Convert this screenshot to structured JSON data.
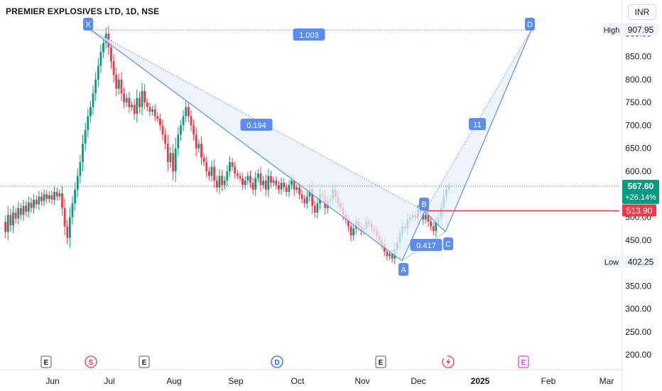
{
  "header": {
    "title": "PREMIER EXPLOSIVES LTD, 1D, NSE",
    "currency": "INR"
  },
  "colors": {
    "up": "#089981",
    "down": "#f23645",
    "pattern": "#5b8def",
    "pattern_fill": "#e8f0fd",
    "level_line": "#f23645",
    "text": "#131722"
  },
  "chart_data": {
    "type": "candlestick",
    "y_range": [
      180,
      930
    ],
    "y_ticks": [
      "200.00",
      "250.00",
      "300.00",
      "350.00",
      "400.00",
      "450.00",
      "500.00",
      "550.00",
      "600.00",
      "650.00",
      "700.00",
      "750.00",
      "800.00",
      "850.00",
      "900.00"
    ],
    "y_tick_values": [
      200,
      250,
      300,
      350,
      400,
      450,
      500,
      550,
      600,
      650,
      700,
      750,
      800,
      850,
      900
    ],
    "x_ticks": [
      "Jun",
      "Jul",
      "Aug",
      "Sep",
      "Oct",
      "Nov",
      "Dec",
      "2025",
      "Feb",
      "Mar"
    ],
    "high": {
      "label": "High",
      "value": "907.95"
    },
    "low": {
      "label": "Low",
      "value": "402.25"
    },
    "last_price": {
      "value": "567.60",
      "change": "+26.14%"
    },
    "level_line": {
      "value": "513.90"
    },
    "harmonic_pattern": {
      "points": [
        {
          "label": "X",
          "date": "Jun 2024",
          "price": 907.95
        },
        {
          "label": "A",
          "date": "Nov 2024",
          "price": 405
        },
        {
          "label": "B",
          "date": "Dec 2024",
          "price": 513
        },
        {
          "label": "C",
          "date": "Dec 2024",
          "price": 468
        },
        {
          "label": "D",
          "date": "Feb 2025",
          "price": 907.95
        }
      ],
      "ratios": [
        "0.194",
        "0.417",
        "11",
        "1.003"
      ]
    },
    "event_markers": [
      "E",
      "S",
      "E",
      "D",
      "E",
      "E"
    ],
    "series": [
      {
        "values": [
          490,
          468,
          505,
          482,
          510,
          497,
          520,
          505,
          525,
          512,
          532,
          520,
          538,
          528,
          545,
          535,
          550,
          540,
          548,
          538,
          555,
          545,
          552,
          520,
          480,
          455,
          500,
          530,
          560,
          590,
          620,
          660,
          690,
          720,
          740,
          770,
          800,
          830,
          860,
          880,
          900,
          870,
          840,
          810,
          780,
          800,
          770,
          750,
          760,
          740,
          745,
          725,
          760,
          740,
          775,
          750,
          740,
          730,
          735,
          720,
          715,
          700,
          680,
          660,
          620,
          640,
          600,
          650,
          680,
          700,
          720,
          740,
          720,
          700,
          680,
          650,
          660,
          630,
          620,
          600,
          590,
          610,
          580,
          565,
          590,
          570,
          580,
          600,
          620,
          610,
          595,
          590,
          585,
          570,
          580,
          590,
          575,
          560,
          585,
          595,
          570,
          580,
          560,
          590,
          575,
          580,
          570,
          560,
          575,
          565,
          555,
          570,
          580,
          560,
          565,
          550,
          540,
          530,
          545,
          560,
          525,
          510,
          530,
          550,
          545,
          520,
          535,
          540,
          560,
          545,
          530,
          520,
          505,
          495,
          480,
          460,
          475,
          490,
          480,
          470,
          475,
          490,
          485,
          475,
          470,
          460,
          450,
          440,
          425,
          415,
          420,
          410,
          430,
          445,
          465,
          480,
          475,
          495,
          500,
          505,
          498,
          515,
          510,
          495,
          505,
          490,
          480,
          470,
          490,
          500,
          520,
          545,
          560,
          568
        ]
      }
    ]
  }
}
